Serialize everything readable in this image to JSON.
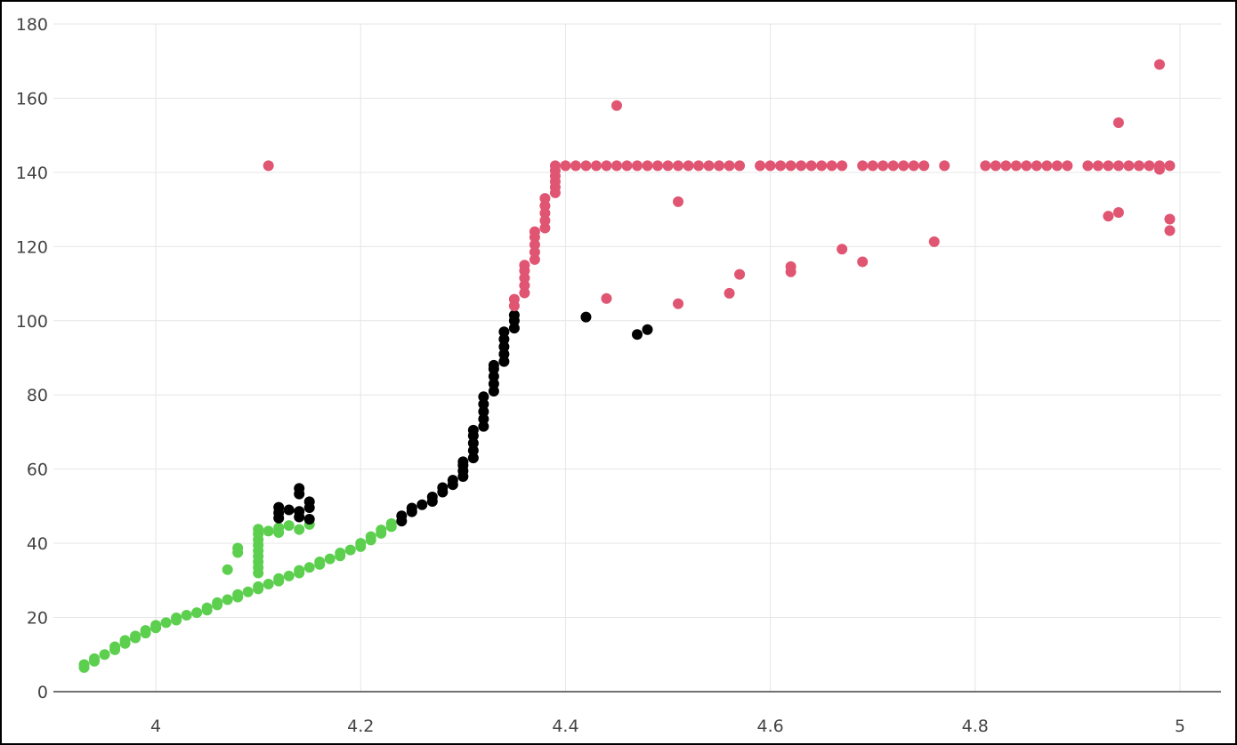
{
  "chart_data": {
    "type": "scatter",
    "title": "",
    "xlabel": "",
    "ylabel": "",
    "xlim": [
      3.9,
      5.04
    ],
    "ylim": [
      0,
      180
    ],
    "x_ticks": [
      4,
      4.2,
      4.4,
      4.6,
      4.8,
      5
    ],
    "x_tick_labels": [
      "4",
      "4.2",
      "4.4",
      "4.6",
      "4.8",
      "5"
    ],
    "y_ticks": [
      0,
      20,
      40,
      60,
      80,
      100,
      120,
      140,
      160,
      180
    ],
    "y_tick_labels": [
      "0",
      "20",
      "40",
      "60",
      "80",
      "100",
      "120",
      "140",
      "160",
      "180"
    ],
    "grid": true,
    "legend": "none",
    "series": [
      {
        "color": "#5ccf4f",
        "points": [
          [
            3.93,
            6.5
          ],
          [
            3.93,
            7.3
          ],
          [
            3.94,
            8.2
          ],
          [
            3.94,
            8.9
          ],
          [
            3.95,
            10.0
          ],
          [
            3.96,
            11.3
          ],
          [
            3.96,
            12.1
          ],
          [
            3.97,
            13.0
          ],
          [
            3.97,
            13.8
          ],
          [
            3.98,
            14.5
          ],
          [
            3.98,
            15.0
          ],
          [
            3.99,
            15.8
          ],
          [
            3.99,
            16.5
          ],
          [
            4.0,
            17.2
          ],
          [
            4.0,
            17.9
          ],
          [
            4.01,
            18.6
          ],
          [
            4.02,
            19.3
          ],
          [
            4.02,
            19.9
          ],
          [
            4.03,
            20.6
          ],
          [
            4.04,
            21.3
          ],
          [
            4.05,
            22.0
          ],
          [
            4.05,
            22.6
          ],
          [
            4.06,
            23.4
          ],
          [
            4.06,
            24.0
          ],
          [
            4.07,
            24.8
          ],
          [
            4.08,
            25.5
          ],
          [
            4.08,
            26.2
          ],
          [
            4.09,
            26.9
          ],
          [
            4.1,
            27.7
          ],
          [
            4.1,
            28.3
          ],
          [
            4.11,
            29.0
          ],
          [
            4.12,
            29.8
          ],
          [
            4.12,
            30.5
          ],
          [
            4.13,
            31.2
          ],
          [
            4.14,
            32.0
          ],
          [
            4.14,
            32.7
          ],
          [
            4.15,
            33.5
          ],
          [
            4.16,
            34.3
          ],
          [
            4.16,
            35.0
          ],
          [
            4.17,
            35.8
          ],
          [
            4.18,
            36.6
          ],
          [
            4.18,
            37.4
          ],
          [
            4.19,
            38.2
          ],
          [
            4.2,
            39.1
          ],
          [
            4.2,
            40.0
          ],
          [
            4.21,
            40.9
          ],
          [
            4.21,
            41.8
          ],
          [
            4.22,
            42.7
          ],
          [
            4.22,
            43.6
          ],
          [
            4.23,
            44.5
          ],
          [
            4.23,
            45.3
          ],
          [
            4.07,
            32.9
          ],
          [
            4.08,
            37.5
          ],
          [
            4.08,
            38.7
          ],
          [
            4.1,
            32.0
          ],
          [
            4.1,
            33.5
          ],
          [
            4.1,
            35.0
          ],
          [
            4.1,
            36.5
          ],
          [
            4.1,
            38.0
          ],
          [
            4.1,
            39.5
          ],
          [
            4.1,
            41.0
          ],
          [
            4.1,
            42.5
          ],
          [
            4.1,
            43.8
          ],
          [
            4.11,
            43.3
          ],
          [
            4.12,
            42.9
          ],
          [
            4.12,
            44.2
          ],
          [
            4.13,
            44.8
          ],
          [
            4.14,
            43.7
          ],
          [
            4.15,
            45.1
          ]
        ]
      },
      {
        "color": "#000000",
        "points": [
          [
            4.12,
            46.8
          ],
          [
            4.12,
            48.2
          ],
          [
            4.12,
            49.7
          ],
          [
            4.13,
            49.0
          ],
          [
            4.14,
            47.1
          ],
          [
            4.14,
            48.6
          ],
          [
            4.14,
            53.3
          ],
          [
            4.14,
            54.8
          ],
          [
            4.15,
            46.5
          ],
          [
            4.15,
            49.6
          ],
          [
            4.15,
            51.2
          ],
          [
            4.24,
            46.0
          ],
          [
            4.24,
            47.4
          ],
          [
            4.25,
            48.5
          ],
          [
            4.25,
            49.5
          ],
          [
            4.26,
            50.4
          ],
          [
            4.27,
            51.3
          ],
          [
            4.27,
            52.5
          ],
          [
            4.28,
            53.8
          ],
          [
            4.28,
            55.0
          ],
          [
            4.29,
            55.8
          ],
          [
            4.29,
            57.0
          ],
          [
            4.3,
            58.0
          ],
          [
            4.3,
            59.5
          ],
          [
            4.3,
            61.0
          ],
          [
            4.3,
            62.0
          ],
          [
            4.31,
            63.0
          ],
          [
            4.31,
            65.0
          ],
          [
            4.31,
            67.0
          ],
          [
            4.31,
            69.0
          ],
          [
            4.31,
            70.5
          ],
          [
            4.32,
            71.5
          ],
          [
            4.32,
            73.5
          ],
          [
            4.32,
            75.5
          ],
          [
            4.32,
            77.5
          ],
          [
            4.32,
            79.5
          ],
          [
            4.33,
            81.0
          ],
          [
            4.33,
            83.0
          ],
          [
            4.33,
            85.0
          ],
          [
            4.33,
            87.0
          ],
          [
            4.33,
            88.0
          ],
          [
            4.34,
            89.0
          ],
          [
            4.34,
            91.0
          ],
          [
            4.34,
            93.0
          ],
          [
            4.34,
            95.0
          ],
          [
            4.34,
            97.0
          ],
          [
            4.35,
            98.0
          ],
          [
            4.35,
            100.0
          ],
          [
            4.35,
            101.5
          ],
          [
            4.42,
            101.0
          ],
          [
            4.47,
            96.3
          ],
          [
            4.48,
            97.6
          ]
        ]
      },
      {
        "color": "#e05572",
        "points": [
          [
            4.11,
            141.8
          ],
          [
            4.35,
            104.0
          ],
          [
            4.35,
            105.8
          ],
          [
            4.36,
            107.5
          ],
          [
            4.36,
            109.5
          ],
          [
            4.36,
            111.5
          ],
          [
            4.36,
            113.5
          ],
          [
            4.36,
            115.0
          ],
          [
            4.37,
            116.5
          ],
          [
            4.37,
            118.5
          ],
          [
            4.37,
            120.5
          ],
          [
            4.37,
            122.5
          ],
          [
            4.37,
            124.0
          ],
          [
            4.38,
            125.0
          ],
          [
            4.38,
            127.0
          ],
          [
            4.38,
            129.0
          ],
          [
            4.38,
            131.0
          ],
          [
            4.38,
            133.0
          ],
          [
            4.39,
            134.5
          ],
          [
            4.39,
            136.0
          ],
          [
            4.39,
            137.5
          ],
          [
            4.39,
            139.0
          ],
          [
            4.39,
            140.5
          ],
          [
            4.39,
            141.8
          ],
          [
            4.4,
            141.8
          ],
          [
            4.41,
            141.8
          ],
          [
            4.42,
            141.8
          ],
          [
            4.43,
            141.8
          ],
          [
            4.44,
            141.8
          ],
          [
            4.45,
            141.8
          ],
          [
            4.46,
            141.8
          ],
          [
            4.47,
            141.8
          ],
          [
            4.48,
            141.8
          ],
          [
            4.49,
            141.8
          ],
          [
            4.5,
            141.8
          ],
          [
            4.51,
            141.8
          ],
          [
            4.52,
            141.8
          ],
          [
            4.53,
            141.8
          ],
          [
            4.54,
            141.8
          ],
          [
            4.55,
            141.8
          ],
          [
            4.56,
            141.8
          ],
          [
            4.57,
            141.8
          ],
          [
            4.59,
            141.8
          ],
          [
            4.6,
            141.8
          ],
          [
            4.61,
            141.8
          ],
          [
            4.62,
            141.8
          ],
          [
            4.63,
            141.8
          ],
          [
            4.64,
            141.8
          ],
          [
            4.65,
            141.8
          ],
          [
            4.66,
            141.8
          ],
          [
            4.67,
            141.8
          ],
          [
            4.69,
            141.8
          ],
          [
            4.7,
            141.8
          ],
          [
            4.71,
            141.8
          ],
          [
            4.72,
            141.8
          ],
          [
            4.73,
            141.8
          ],
          [
            4.74,
            141.8
          ],
          [
            4.75,
            141.8
          ],
          [
            4.77,
            141.8
          ],
          [
            4.81,
            141.8
          ],
          [
            4.82,
            141.8
          ],
          [
            4.83,
            141.8
          ],
          [
            4.84,
            141.8
          ],
          [
            4.85,
            141.8
          ],
          [
            4.86,
            141.8
          ],
          [
            4.87,
            141.8
          ],
          [
            4.88,
            141.8
          ],
          [
            4.89,
            141.8
          ],
          [
            4.91,
            141.8
          ],
          [
            4.92,
            141.8
          ],
          [
            4.93,
            141.8
          ],
          [
            4.94,
            141.8
          ],
          [
            4.95,
            141.8
          ],
          [
            4.96,
            141.8
          ],
          [
            4.97,
            141.8
          ],
          [
            4.98,
            141.8
          ],
          [
            4.99,
            141.8
          ],
          [
            4.44,
            106.0
          ],
          [
            4.45,
            158.0
          ],
          [
            4.51,
            104.6
          ],
          [
            4.51,
            132.1
          ],
          [
            4.56,
            107.4
          ],
          [
            4.57,
            112.5
          ],
          [
            4.62,
            113.2
          ],
          [
            4.62,
            114.6
          ],
          [
            4.67,
            119.3
          ],
          [
            4.69,
            115.9
          ],
          [
            4.76,
            121.3
          ],
          [
            4.93,
            128.2
          ],
          [
            4.94,
            129.2
          ],
          [
            4.94,
            153.4
          ],
          [
            4.98,
            169.1
          ],
          [
            4.98,
            140.8
          ],
          [
            4.99,
            127.4
          ],
          [
            4.99,
            124.3
          ]
        ]
      }
    ]
  }
}
